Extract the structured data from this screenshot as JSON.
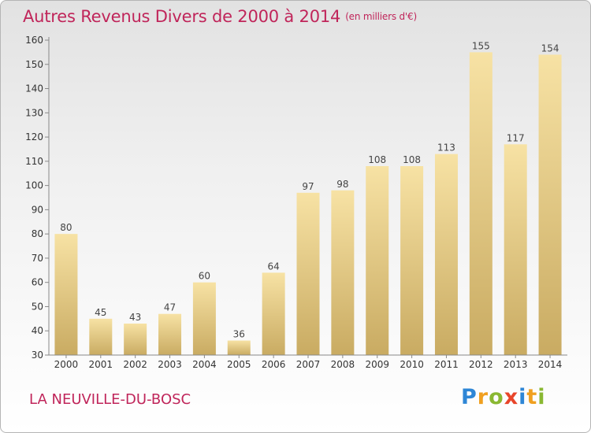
{
  "chart_data": {
    "type": "bar",
    "title": "Autres Revenus Divers de 2000 à 2014",
    "unit_label": "(en milliers d'€)",
    "categories": [
      "2000",
      "2001",
      "2002",
      "2003",
      "2004",
      "2005",
      "2006",
      "2007",
      "2008",
      "2009",
      "2010",
      "2011",
      "2012",
      "2013",
      "2014"
    ],
    "values": [
      80,
      45,
      43,
      47,
      60,
      36,
      64,
      97,
      98,
      108,
      108,
      113,
      155,
      117,
      154
    ],
    "ylim": [
      30,
      160
    ],
    "yticks": [
      30,
      40,
      50,
      60,
      70,
      80,
      90,
      100,
      110,
      120,
      130,
      140,
      150,
      160
    ],
    "grid": false,
    "data_labels": true
  },
  "footer": {
    "commune": "LA NEUVILLE-DU-BOSC",
    "logo_letters": [
      {
        "ch": "P",
        "color": "#2e86d6"
      },
      {
        "ch": "r",
        "color": "#f0a020"
      },
      {
        "ch": "o",
        "color": "#8ab832"
      },
      {
        "ch": "x",
        "color": "#e8452a"
      },
      {
        "ch": "i",
        "color": "#2e86d6"
      },
      {
        "ch": "t",
        "color": "#f0a020"
      },
      {
        "ch": "i",
        "color": "#8ab832"
      }
    ]
  },
  "colors": {
    "bar_top": "#f7e2a4",
    "bar_bottom": "#c9ab62",
    "title": "#c0255a"
  }
}
